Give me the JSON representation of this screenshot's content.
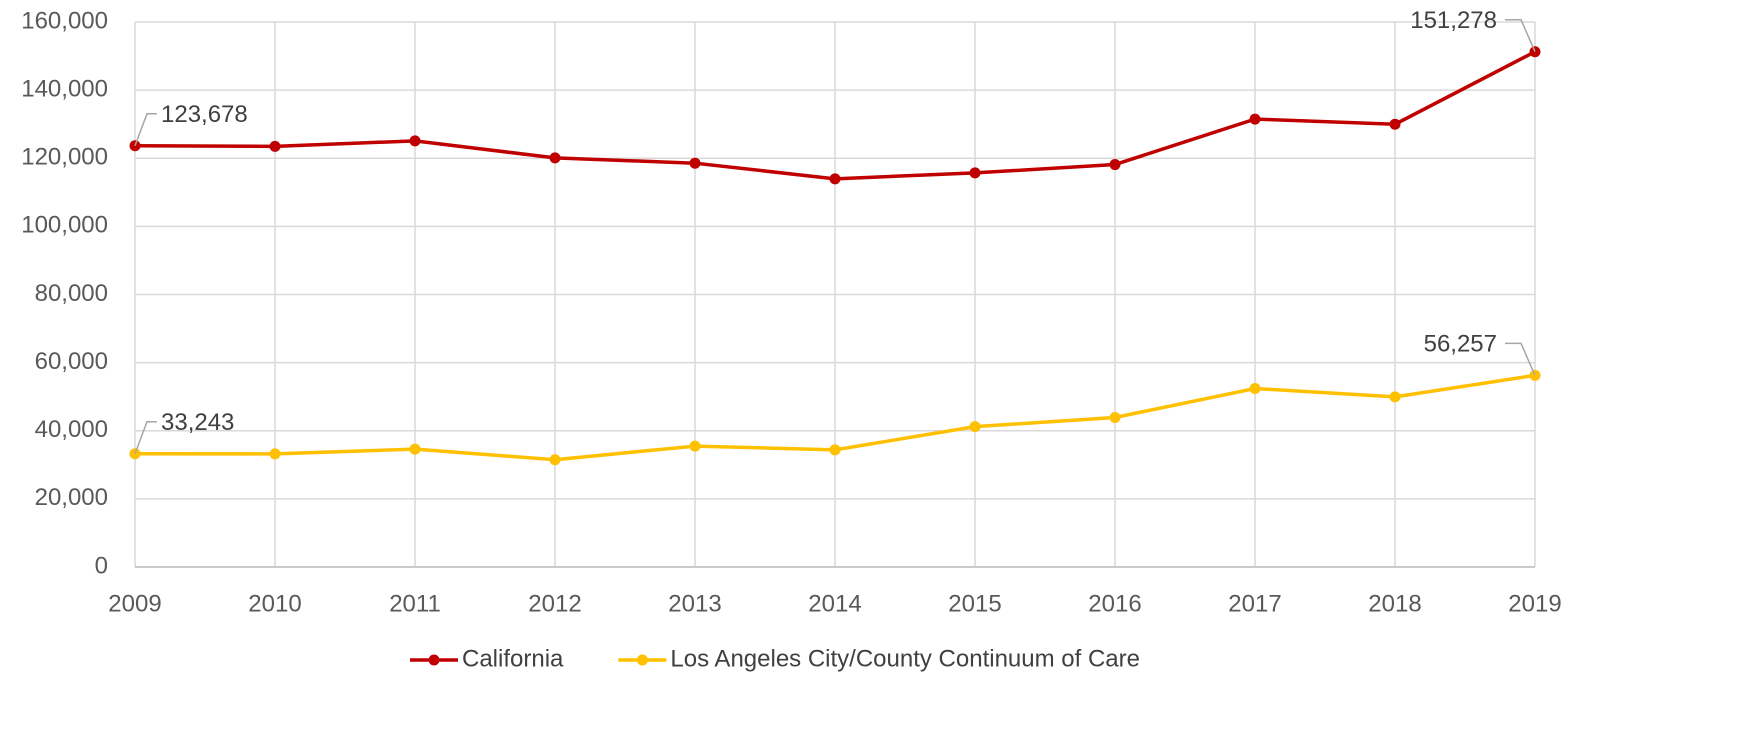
{
  "chart_data": {
    "type": "line",
    "x": [
      2009,
      2010,
      2011,
      2012,
      2013,
      2014,
      2015,
      2016,
      2017,
      2018,
      2019
    ],
    "xlim": [
      2009,
      2019
    ],
    "xticks": [
      2009,
      2010,
      2011,
      2012,
      2013,
      2014,
      2015,
      2016,
      2017,
      2018,
      2019
    ],
    "ylim": [
      0,
      160000
    ],
    "yticks": [
      {
        "value": 0,
        "label": "0"
      },
      {
        "value": 20000,
        "label": "20,000"
      },
      {
        "value": 40000,
        "label": "40,000"
      },
      {
        "value": 60000,
        "label": "60,000"
      },
      {
        "value": 80000,
        "label": "80,000"
      },
      {
        "value": 100000,
        "label": "100,000"
      },
      {
        "value": 120000,
        "label": "120,000"
      },
      {
        "value": 140000,
        "label": "140,000"
      },
      {
        "value": 160000,
        "label": "160,000"
      }
    ],
    "grid": true,
    "legend": "bottom",
    "series": [
      {
        "name": "California",
        "color": "#c00000",
        "values": [
          123678,
          123500,
          125100,
          120100,
          118550,
          113950,
          115700,
          118150,
          131500,
          129970,
          151278
        ],
        "value_labels": [
          "123,678",
          null,
          null,
          null,
          null,
          null,
          null,
          null,
          null,
          null,
          "151,278"
        ]
      },
      {
        "name": "Los Angeles City/County Continuum of Care",
        "color": "#ffc000",
        "values": [
          33243,
          33200,
          34600,
          31500,
          35500,
          34400,
          41200,
          43900,
          52400,
          49950,
          56257
        ],
        "value_labels": [
          "33,243",
          null,
          null,
          null,
          null,
          null,
          null,
          null,
          null,
          null,
          "56,257"
        ]
      }
    ]
  }
}
